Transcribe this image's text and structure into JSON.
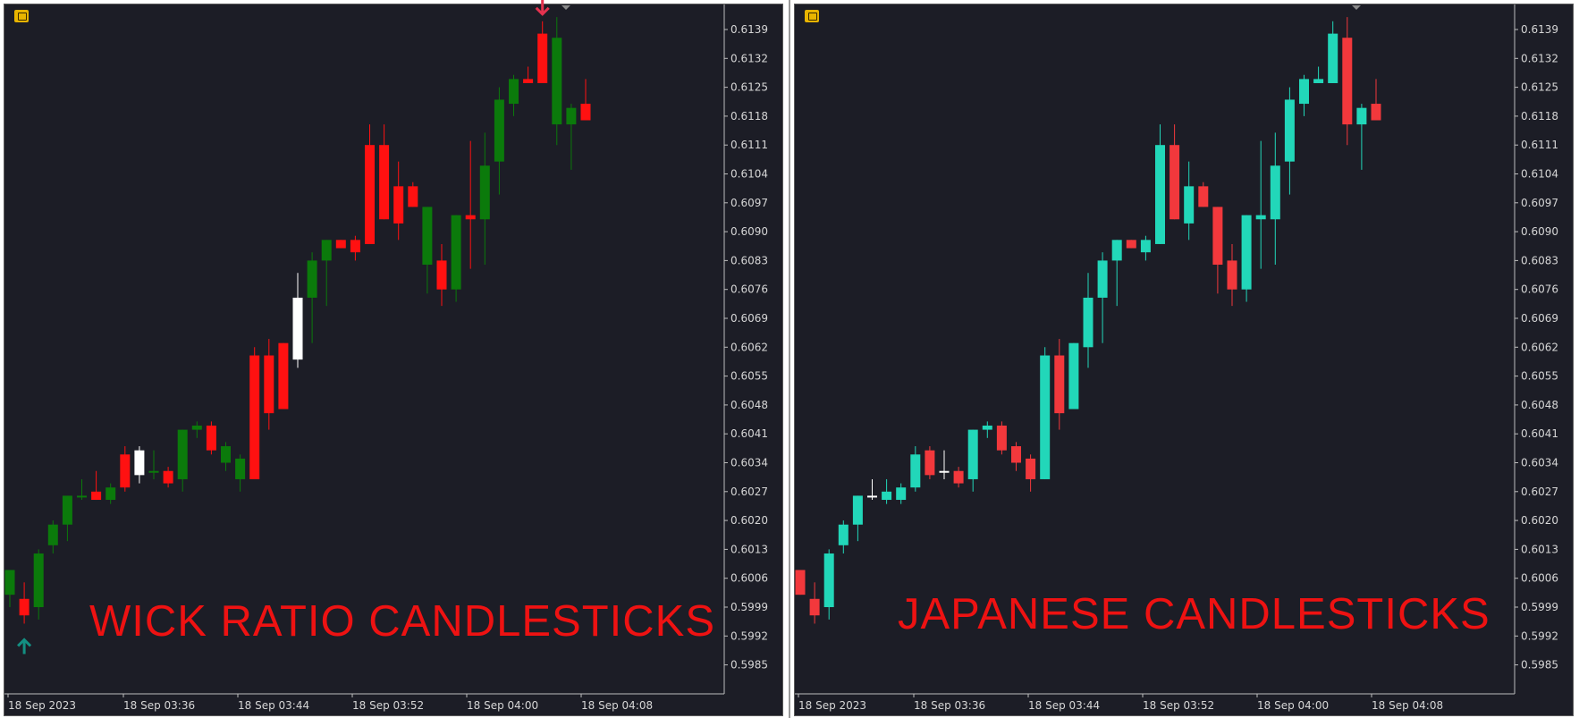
{
  "panels": [
    {
      "name": "left",
      "overlay_title": "WICK RATIO CANDLESTICKS"
    },
    {
      "name": "right",
      "overlay_title": "JAPANESE CANDLESTICKS"
    }
  ],
  "colors": {
    "background": "#1c1d26",
    "left_bull": "#0b7a0b",
    "left_bear": "#ff1111",
    "left_special": "#ffffff",
    "right_bull": "#22d7b9",
    "right_bear": "#f2383c",
    "arrow_up": "#138f82",
    "arrow_down": "#e4324f"
  },
  "chart_data": [
    {
      "type": "candlestick",
      "title": "",
      "y_ticks": [
        "0.6139",
        "0.6132",
        "0.6125",
        "0.6118",
        "0.6111",
        "0.6104",
        "0.6097",
        "0.6090",
        "0.6083",
        "0.6076",
        "0.6069",
        "0.6062",
        "0.6055",
        "0.6048",
        "0.6041",
        "0.6034",
        "0.6027",
        "0.6020",
        "0.6013",
        "0.6006",
        "0.5999",
        "0.5992",
        "0.5985"
      ],
      "x_ticks": [
        "18 Sep 2023",
        "18 Sep 03:36",
        "18 Sep 03:44",
        "18 Sep 03:52",
        "18 Sep 04:00",
        "18 Sep 04:08"
      ],
      "ylim": [
        0.5978,
        0.6145
      ],
      "candles": [
        {
          "o": 0.6002,
          "h": 0.6008,
          "l": 0.5999,
          "c": 0.6008,
          "k": "bull"
        },
        {
          "o": 0.6001,
          "h": 0.6005,
          "l": 0.5995,
          "c": 0.5997,
          "k": "bear"
        },
        {
          "o": 0.5999,
          "h": 0.6013,
          "l": 0.5996,
          "c": 0.6012,
          "k": "bull"
        },
        {
          "o": 0.6014,
          "h": 0.602,
          "l": 0.6012,
          "c": 0.6019,
          "k": "bull"
        },
        {
          "o": 0.6019,
          "h": 0.6026,
          "l": 0.6015,
          "c": 0.6026,
          "k": "bull"
        },
        {
          "o": 0.6026,
          "h": 0.603,
          "l": 0.6025,
          "c": 0.6026,
          "k": "bull"
        },
        {
          "o": 0.6027,
          "h": 0.6032,
          "l": 0.6025,
          "c": 0.6025,
          "k": "bear"
        },
        {
          "o": 0.6025,
          "h": 0.6029,
          "l": 0.6024,
          "c": 0.6028,
          "k": "bull"
        },
        {
          "o": 0.6036,
          "h": 0.6038,
          "l": 0.6027,
          "c": 0.6028,
          "k": "bear"
        },
        {
          "o": 0.6031,
          "h": 0.6038,
          "l": 0.6029,
          "c": 0.6037,
          "k": "special"
        },
        {
          "o": 0.6032,
          "h": 0.6037,
          "l": 0.603,
          "c": 0.6032,
          "k": "bull"
        },
        {
          "o": 0.6032,
          "h": 0.6033,
          "l": 0.6028,
          "c": 0.6029,
          "k": "bear"
        },
        {
          "o": 0.603,
          "h": 0.6042,
          "l": 0.6027,
          "c": 0.6042,
          "k": "bull"
        },
        {
          "o": 0.6042,
          "h": 0.6044,
          "l": 0.604,
          "c": 0.6043,
          "k": "bull"
        },
        {
          "o": 0.6043,
          "h": 0.6044,
          "l": 0.6036,
          "c": 0.6037,
          "k": "bear"
        },
        {
          "o": 0.6034,
          "h": 0.6039,
          "l": 0.6032,
          "c": 0.6038,
          "k": "bull"
        },
        {
          "o": 0.603,
          "h": 0.6036,
          "l": 0.6027,
          "c": 0.6035,
          "k": "bull"
        },
        {
          "o": 0.606,
          "h": 0.6062,
          "l": 0.603,
          "c": 0.603,
          "k": "bear"
        },
        {
          "o": 0.606,
          "h": 0.6064,
          "l": 0.6042,
          "c": 0.6046,
          "k": "bear"
        },
        {
          "o": 0.6047,
          "h": 0.6063,
          "l": 0.6047,
          "c": 0.6063,
          "k": "bear"
        },
        {
          "o": 0.6059,
          "h": 0.608,
          "l": 0.6057,
          "c": 0.6074,
          "k": "special"
        },
        {
          "o": 0.6074,
          "h": 0.6085,
          "l": 0.6063,
          "c": 0.6083,
          "k": "bull"
        },
        {
          "o": 0.6083,
          "h": 0.6088,
          "l": 0.6072,
          "c": 0.6088,
          "k": "bull"
        },
        {
          "o": 0.6088,
          "h": 0.6088,
          "l": 0.6086,
          "c": 0.6086,
          "k": "bear"
        },
        {
          "o": 0.6088,
          "h": 0.6089,
          "l": 0.6083,
          "c": 0.6085,
          "k": "bear"
        },
        {
          "o": 0.6111,
          "h": 0.6116,
          "l": 0.6087,
          "c": 0.6087,
          "k": "bear"
        },
        {
          "o": 0.6111,
          "h": 0.6116,
          "l": 0.6093,
          "c": 0.6093,
          "k": "bear"
        },
        {
          "o": 0.6101,
          "h": 0.6107,
          "l": 0.6088,
          "c": 0.6092,
          "k": "bear"
        },
        {
          "o": 0.6101,
          "h": 0.6102,
          "l": 0.6096,
          "c": 0.6096,
          "k": "bear"
        },
        {
          "o": 0.6096,
          "h": 0.6096,
          "l": 0.6075,
          "c": 0.6082,
          "k": "bull"
        },
        {
          "o": 0.6083,
          "h": 0.6087,
          "l": 0.6072,
          "c": 0.6076,
          "k": "bear"
        },
        {
          "o": 0.6094,
          "h": 0.6094,
          "l": 0.6073,
          "c": 0.6076,
          "k": "bull"
        },
        {
          "o": 0.6094,
          "h": 0.6112,
          "l": 0.6081,
          "c": 0.6093,
          "k": "bear"
        },
        {
          "o": 0.6093,
          "h": 0.6114,
          "l": 0.6082,
          "c": 0.6106,
          "k": "bull"
        },
        {
          "o": 0.6107,
          "h": 0.6125,
          "l": 0.6099,
          "c": 0.6122,
          "k": "bull"
        },
        {
          "o": 0.6121,
          "h": 0.6128,
          "l": 0.6118,
          "c": 0.6127,
          "k": "bull"
        },
        {
          "o": 0.6127,
          "h": 0.613,
          "l": 0.6126,
          "c": 0.6126,
          "k": "bear"
        },
        {
          "o": 0.6138,
          "h": 0.6141,
          "l": 0.6126,
          "c": 0.6126,
          "k": "bear"
        },
        {
          "o": 0.6137,
          "h": 0.6142,
          "l": 0.6111,
          "c": 0.6116,
          "k": "bull"
        },
        {
          "o": 0.6116,
          "h": 0.6121,
          "l": 0.6105,
          "c": 0.612,
          "k": "bull"
        },
        {
          "o": 0.6121,
          "h": 0.6127,
          "l": 0.6117,
          "c": 0.6117,
          "k": "bear"
        }
      ],
      "markers": [
        {
          "kind": "arrow_up",
          "candle": 1
        },
        {
          "kind": "arrow_down",
          "candle": 37
        }
      ]
    },
    {
      "type": "candlestick",
      "title": "",
      "y_ticks": [
        "0.6139",
        "0.6132",
        "0.6125",
        "0.6118",
        "0.6111",
        "0.6104",
        "0.6097",
        "0.6090",
        "0.6083",
        "0.6076",
        "0.6069",
        "0.6062",
        "0.6055",
        "0.6048",
        "0.6041",
        "0.6034",
        "0.6027",
        "0.6020",
        "0.6013",
        "0.6006",
        "0.5999",
        "0.5992",
        "0.5985"
      ],
      "x_ticks": [
        "18 Sep 2023",
        "18 Sep 03:36",
        "18 Sep 03:44",
        "18 Sep 03:52",
        "18 Sep 04:00",
        "18 Sep 04:08"
      ],
      "ylim": [
        0.5978,
        0.6145
      ],
      "candles": [
        {
          "o": 0.6008,
          "h": 0.6008,
          "l": 0.6002,
          "c": 0.6002,
          "k": "bear"
        },
        {
          "o": 0.6001,
          "h": 0.6005,
          "l": 0.5995,
          "c": 0.5997,
          "k": "bear"
        },
        {
          "o": 0.5999,
          "h": 0.6013,
          "l": 0.5996,
          "c": 0.6012,
          "k": "bull"
        },
        {
          "o": 0.6014,
          "h": 0.602,
          "l": 0.6012,
          "c": 0.6019,
          "k": "bull"
        },
        {
          "o": 0.6019,
          "h": 0.6026,
          "l": 0.6015,
          "c": 0.6026,
          "k": "bull"
        },
        {
          "o": 0.6026,
          "h": 0.603,
          "l": 0.6025,
          "c": 0.6026,
          "k": "doji"
        },
        {
          "o": 0.6025,
          "h": 0.603,
          "l": 0.6024,
          "c": 0.6027,
          "k": "bull"
        },
        {
          "o": 0.6025,
          "h": 0.6029,
          "l": 0.6024,
          "c": 0.6028,
          "k": "bull"
        },
        {
          "o": 0.6028,
          "h": 0.6038,
          "l": 0.6027,
          "c": 0.6036,
          "k": "bull"
        },
        {
          "o": 0.6037,
          "h": 0.6038,
          "l": 0.603,
          "c": 0.6031,
          "k": "bear"
        },
        {
          "o": 0.6032,
          "h": 0.6037,
          "l": 0.603,
          "c": 0.6032,
          "k": "doji"
        },
        {
          "o": 0.6032,
          "h": 0.6033,
          "l": 0.6028,
          "c": 0.6029,
          "k": "bear"
        },
        {
          "o": 0.603,
          "h": 0.6042,
          "l": 0.6027,
          "c": 0.6042,
          "k": "bull"
        },
        {
          "o": 0.6042,
          "h": 0.6044,
          "l": 0.604,
          "c": 0.6043,
          "k": "bull"
        },
        {
          "o": 0.6043,
          "h": 0.6044,
          "l": 0.6036,
          "c": 0.6037,
          "k": "bear"
        },
        {
          "o": 0.6038,
          "h": 0.6039,
          "l": 0.6032,
          "c": 0.6034,
          "k": "bear"
        },
        {
          "o": 0.6035,
          "h": 0.6036,
          "l": 0.6027,
          "c": 0.603,
          "k": "bear"
        },
        {
          "o": 0.603,
          "h": 0.6062,
          "l": 0.603,
          "c": 0.606,
          "k": "bull"
        },
        {
          "o": 0.606,
          "h": 0.6064,
          "l": 0.6042,
          "c": 0.6046,
          "k": "bear"
        },
        {
          "o": 0.6047,
          "h": 0.6063,
          "l": 0.6047,
          "c": 0.6063,
          "k": "bull"
        },
        {
          "o": 0.6062,
          "h": 0.608,
          "l": 0.6057,
          "c": 0.6074,
          "k": "bull"
        },
        {
          "o": 0.6074,
          "h": 0.6085,
          "l": 0.6063,
          "c": 0.6083,
          "k": "bull"
        },
        {
          "o": 0.6083,
          "h": 0.6088,
          "l": 0.6072,
          "c": 0.6088,
          "k": "bull"
        },
        {
          "o": 0.6088,
          "h": 0.6088,
          "l": 0.6086,
          "c": 0.6086,
          "k": "bear"
        },
        {
          "o": 0.6085,
          "h": 0.6089,
          "l": 0.6083,
          "c": 0.6088,
          "k": "bull"
        },
        {
          "o": 0.6087,
          "h": 0.6116,
          "l": 0.6087,
          "c": 0.6111,
          "k": "bull"
        },
        {
          "o": 0.6111,
          "h": 0.6116,
          "l": 0.6093,
          "c": 0.6093,
          "k": "bear"
        },
        {
          "o": 0.6092,
          "h": 0.6107,
          "l": 0.6088,
          "c": 0.6101,
          "k": "bull"
        },
        {
          "o": 0.6101,
          "h": 0.6102,
          "l": 0.6096,
          "c": 0.6096,
          "k": "bear"
        },
        {
          "o": 0.6096,
          "h": 0.6096,
          "l": 0.6075,
          "c": 0.6082,
          "k": "bear"
        },
        {
          "o": 0.6083,
          "h": 0.6087,
          "l": 0.6072,
          "c": 0.6076,
          "k": "bear"
        },
        {
          "o": 0.6076,
          "h": 0.6094,
          "l": 0.6073,
          "c": 0.6094,
          "k": "bull"
        },
        {
          "o": 0.6093,
          "h": 0.6112,
          "l": 0.6081,
          "c": 0.6094,
          "k": "bull"
        },
        {
          "o": 0.6093,
          "h": 0.6114,
          "l": 0.6082,
          "c": 0.6106,
          "k": "bull"
        },
        {
          "o": 0.6107,
          "h": 0.6125,
          "l": 0.6099,
          "c": 0.6122,
          "k": "bull"
        },
        {
          "o": 0.6121,
          "h": 0.6128,
          "l": 0.6118,
          "c": 0.6127,
          "k": "bull"
        },
        {
          "o": 0.6126,
          "h": 0.613,
          "l": 0.6126,
          "c": 0.6127,
          "k": "bull"
        },
        {
          "o": 0.6126,
          "h": 0.6141,
          "l": 0.6126,
          "c": 0.6138,
          "k": "bull"
        },
        {
          "o": 0.6137,
          "h": 0.6142,
          "l": 0.6111,
          "c": 0.6116,
          "k": "bear"
        },
        {
          "o": 0.6116,
          "h": 0.6121,
          "l": 0.6105,
          "c": 0.612,
          "k": "bull"
        },
        {
          "o": 0.6121,
          "h": 0.6127,
          "l": 0.6117,
          "c": 0.6117,
          "k": "bear"
        }
      ],
      "markers": []
    }
  ]
}
